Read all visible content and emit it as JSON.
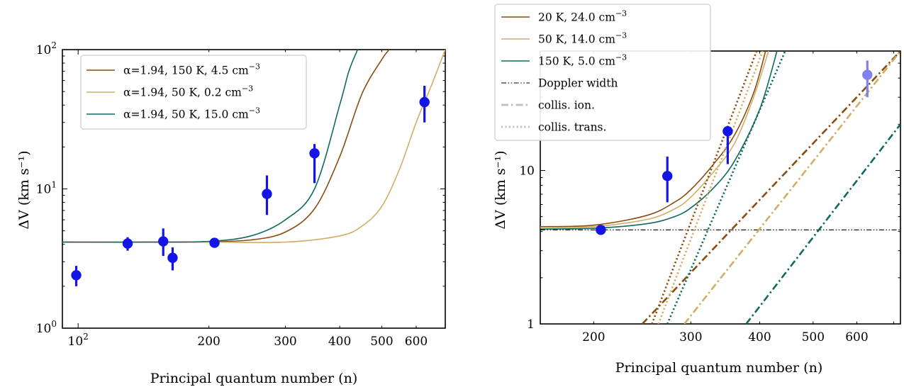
{
  "colors": {
    "brown": "#8a4d0f",
    "tan": "#d2ad66",
    "teal": "#0f6a60",
    "marker": "#1414e6",
    "marker_faded": "#8080ee",
    "doppler": "#000000",
    "grey": "#c2c2c2"
  },
  "chart_data": [
    {
      "type": "line",
      "panel": "left",
      "xlabel": "Principal quantum number (n)",
      "ylabel": "ΔV (km s⁻¹)",
      "xscale": "log",
      "yscale": "log",
      "xlim": [
        92,
        700
      ],
      "ylim": [
        1,
        100
      ],
      "x_ticks": [
        {
          "value": 100,
          "label": "10",
          "sup": "2"
        },
        {
          "value": 200,
          "label": "200"
        },
        {
          "value": 300,
          "label": "300"
        },
        {
          "value": 400,
          "label": "400"
        },
        {
          "value": 500,
          "label": "500"
        },
        {
          "value": 600,
          "label": "600"
        }
      ],
      "y_ticks": [
        {
          "value": 1,
          "label": "10",
          "sup": "0"
        },
        {
          "value": 10,
          "label": "10",
          "sup": "1"
        },
        {
          "value": 100,
          "label": "10",
          "sup": "2"
        }
      ],
      "legend_position": "top-left",
      "series": [
        {
          "name": "α=1.94, 150 K, 4.5 cm⁻³",
          "label": "α=1.94, 150 K, 4.5 cm",
          "sup": "−3",
          "color_key": "brown",
          "x": [
            92,
            150,
            200,
            250,
            300,
            350,
            400,
            450,
            500,
            520
          ],
          "y": [
            4.15,
            4.15,
            4.18,
            4.3,
            4.9,
            7.2,
            17,
            48,
            85,
            100
          ]
        },
        {
          "name": "α=1.94, 50 K, 0.2 cm⁻³",
          "label": "α=1.94, 50 K, 0.2 cm",
          "sup": "−3",
          "color_key": "tan",
          "x": [
            92,
            150,
            200,
            300,
            400,
            450,
            500,
            550,
            600,
            650,
            700
          ],
          "y": [
            4.15,
            4.15,
            4.15,
            4.15,
            4.6,
            5.4,
            7.5,
            14,
            30,
            55,
            100
          ]
        },
        {
          "name": "α=1.94, 50 K, 15.0 cm⁻³",
          "label": "α=1.94, 50 K, 15.0 cm",
          "sup": "−3",
          "color_key": "teal",
          "x": [
            92,
            150,
            200,
            250,
            300,
            350,
            400,
            420,
            440
          ],
          "y": [
            4.15,
            4.15,
            4.2,
            4.6,
            6,
            10,
            40,
            70,
            100
          ]
        }
      ],
      "points": [
        {
          "x": 99,
          "y": 2.4,
          "ylo": 2.0,
          "yhi": 2.8
        },
        {
          "x": 130,
          "y": 4.05,
          "ylo": 3.6,
          "yhi": 4.5
        },
        {
          "x": 157,
          "y": 4.2,
          "ylo": 3.3,
          "yhi": 5.2
        },
        {
          "x": 165,
          "y": 3.2,
          "ylo": 2.6,
          "yhi": 3.8
        },
        {
          "x": 206,
          "y": 4.1,
          "ylo": 3.9,
          "yhi": 4.3
        },
        {
          "x": 272,
          "y": 9.2,
          "ylo": 6.5,
          "yhi": 12.5
        },
        {
          "x": 350,
          "y": 18,
          "ylo": 11,
          "yhi": 21
        },
        {
          "x": 627,
          "y": 42,
          "ylo": 30,
          "yhi": 55
        }
      ]
    },
    {
      "type": "line",
      "panel": "right",
      "xlabel": "Principal quantum number (n)",
      "ylabel": "ΔV (km s⁻¹)",
      "xscale": "log",
      "yscale": "log",
      "xlim": [
        160,
        720
      ],
      "ylim": [
        1,
        60
      ],
      "x_ticks": [
        {
          "value": 200,
          "label": "200"
        },
        {
          "value": 300,
          "label": "300"
        },
        {
          "value": 400,
          "label": "400"
        },
        {
          "value": 500,
          "label": "500"
        },
        {
          "value": 600,
          "label": "600"
        }
      ],
      "y_ticks": [
        {
          "value": 1,
          "label": "1"
        },
        {
          "value": 10,
          "label": "10"
        }
      ],
      "legend_position": "upper-left, above axes",
      "series": [
        {
          "name": "20 K, 24.0 cm⁻³",
          "label": "20 K, 24.0 cm",
          "sup": "−3",
          "color_key": "brown",
          "style": "solid",
          "x": [
            160,
            200,
            250,
            280,
            300,
            330,
            360,
            390,
            410
          ],
          "y": [
            4.3,
            4.4,
            5.1,
            6.2,
            7.5,
            11,
            17,
            32,
            60
          ]
        },
        {
          "name": "50 K, 14.0 cm⁻³",
          "label": "50 K, 14.0 cm",
          "sup": "−3",
          "color_key": "tan",
          "style": "solid",
          "x": [
            160,
            200,
            250,
            280,
            300,
            330,
            360,
            390,
            415
          ],
          "y": [
            4.25,
            4.3,
            4.8,
            5.6,
            6.7,
            9.8,
            15,
            30,
            60
          ]
        },
        {
          "name": "150 K, 5.0 cm⁻³",
          "label": "150 K, 5.0 cm",
          "sup": "−3",
          "color_key": "teal",
          "style": "solid",
          "x": [
            160,
            200,
            250,
            280,
            300,
            330,
            360,
            400,
            430
          ],
          "y": [
            4.15,
            4.2,
            4.5,
            5.0,
            5.7,
            7.7,
            11.5,
            25,
            60
          ]
        },
        {
          "name": "Doppler width",
          "label": "Doppler width",
          "color_key": "doppler",
          "style": "doppler",
          "x": [
            160,
            720
          ],
          "y": [
            4.1,
            4.1
          ]
        },
        {
          "name": "collis. ion.",
          "label": "collis. ion.",
          "color_key": "grey",
          "style": "dashdot",
          "legend_only": true,
          "x": [],
          "y": []
        },
        {
          "name": "collis. trans.",
          "label": "collis. trans.",
          "color_key": "grey",
          "style": "dotted",
          "legend_only": true,
          "x": [],
          "y": []
        },
        {
          "name": "collis. ion. (brown)",
          "color_key": "brown",
          "style": "dashdot",
          "nolegend": true,
          "x": [
            245,
            720
          ],
          "y": [
            1,
            60
          ]
        },
        {
          "name": "collis. ion. (tan)",
          "color_key": "tan",
          "style": "dashdot",
          "nolegend": true,
          "x": [
            292,
            720
          ],
          "y": [
            1,
            60
          ]
        },
        {
          "name": "collis. ion. (teal)",
          "color_key": "teal",
          "style": "dashdot",
          "nolegend": true,
          "x": [
            378,
            720
          ],
          "y": [
            1,
            20
          ]
        },
        {
          "name": "collis. trans. (brown)",
          "color_key": "brown",
          "style": "dotted",
          "nolegend": true,
          "x": [
            255,
            395
          ],
          "y": [
            1,
            60
          ]
        },
        {
          "name": "collis. trans. (tan)",
          "color_key": "tan",
          "style": "dotted",
          "nolegend": true,
          "x": [
            262,
            405
          ],
          "y": [
            1,
            60
          ]
        },
        {
          "name": "collis. trans. (teal)",
          "color_key": "teal",
          "style": "dotted",
          "nolegend": true,
          "x": [
            272,
            445
          ],
          "y": [
            1,
            60
          ]
        }
      ],
      "points": [
        {
          "x": 206,
          "y": 4.1,
          "ylo": 4.0,
          "yhi": 4.2
        },
        {
          "x": 272,
          "y": 9.2,
          "ylo": 6.2,
          "yhi": 12.3
        },
        {
          "x": 350,
          "y": 18,
          "ylo": 11,
          "yhi": 19.5
        },
        {
          "x": 627,
          "y": 42,
          "ylo": 30,
          "yhi": 52,
          "faded": true
        }
      ]
    }
  ]
}
